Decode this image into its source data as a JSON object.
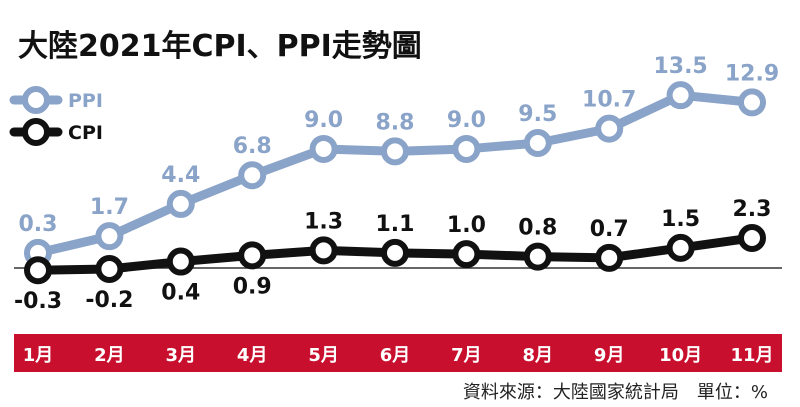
{
  "chart_data": {
    "type": "line",
    "title": "大陸2021年CPI、PPI走勢圖",
    "categories": [
      "1月",
      "2月",
      "3月",
      "4月",
      "5月",
      "6月",
      "7月",
      "8月",
      "9月",
      "10月",
      "11月"
    ],
    "series": [
      {
        "name": "PPI",
        "values": [
          0.3,
          1.7,
          4.4,
          6.8,
          9.0,
          8.8,
          9.0,
          9.5,
          10.7,
          13.5,
          12.9
        ],
        "labels": [
          "0.3",
          "1.7",
          "4.4",
          "6.8",
          "9.0",
          "8.8",
          "9.0",
          "9.5",
          "10.7",
          "13.5",
          "12.9"
        ],
        "color": "#8aa3c8"
      },
      {
        "name": "CPI",
        "values": [
          -0.3,
          -0.2,
          0.4,
          0.9,
          1.3,
          1.1,
          1.0,
          0.8,
          0.7,
          1.5,
          2.3
        ],
        "labels": [
          "-0.3",
          "-0.2",
          "0.4",
          "0.9",
          "1.3",
          "1.1",
          "1.0",
          "0.8",
          "0.7",
          "1.5",
          "2.3"
        ],
        "color": "#111111"
      }
    ],
    "ylim": [
      -3,
      15
    ],
    "grid": false,
    "legend": "top-left",
    "axis_bar_color": "#c8102e",
    "source": "資料來源：大陸國家統計局　單位：%"
  }
}
